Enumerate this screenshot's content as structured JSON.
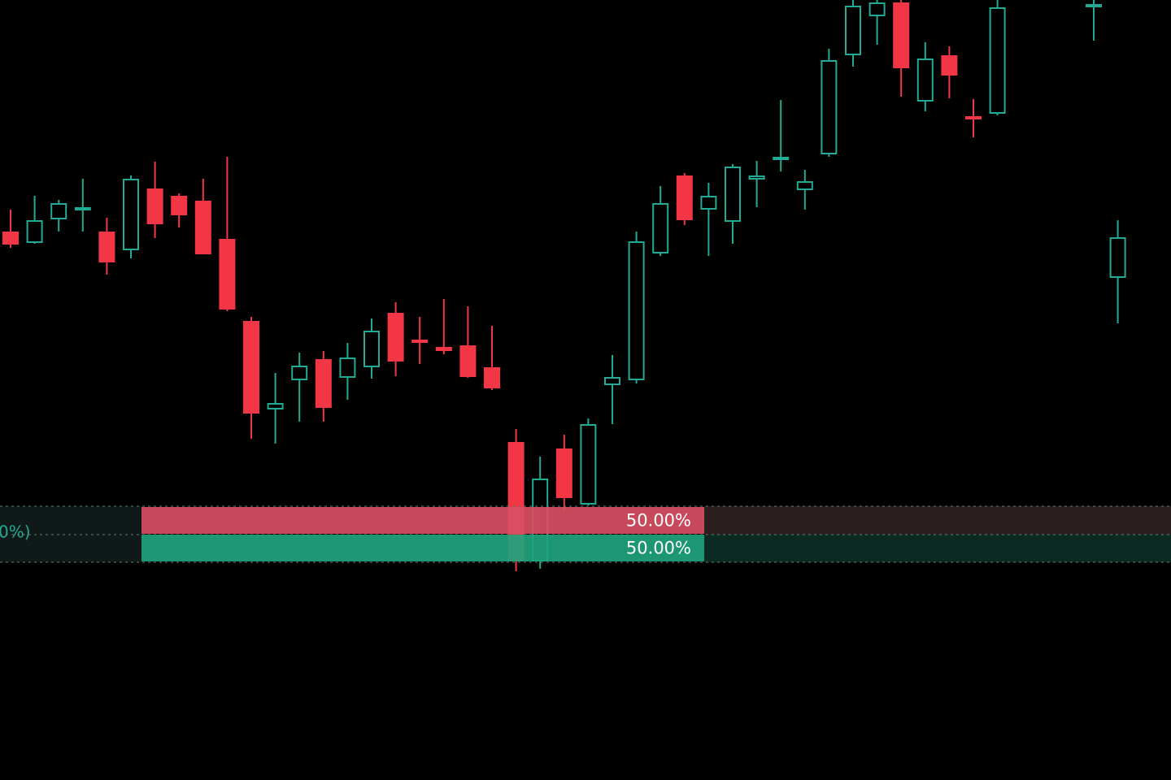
{
  "chart_data": {
    "type": "candlestick",
    "ylim": [
      0,
      96
    ],
    "up_color": "#22ab94",
    "down_color": "#f23645",
    "series": {
      "open": [
        67.4,
        66.2,
        69.1,
        70.2,
        67.4,
        65.3,
        72.7,
        71.8,
        71.2,
        66.5,
        56.4,
        45.7,
        49.3,
        51.7,
        49.6,
        50.9,
        57.4,
        54.1,
        53.2,
        53.4,
        50.7,
        41.5,
        27.0,
        40.7,
        34.0,
        48.7,
        49.3,
        64.9,
        74.3,
        70.3,
        68.8,
        74.0,
        76.4,
        72.7,
        77.1,
        89.3,
        94.1,
        95.6,
        83.6,
        89.1,
        81.6,
        82.1,
        null,
        null,
        null,
        95.2,
        61.9
      ],
      "high": [
        70.2,
        71.9,
        71.4,
        74.0,
        69.2,
        74.4,
        76.1,
        72.2,
        74.0,
        76.7,
        57.0,
        50.1,
        52.6,
        52.8,
        53.8,
        56.8,
        58.8,
        57.0,
        59.2,
        58.3,
        55.9,
        43.2,
        39.8,
        42.5,
        44.5,
        52.3,
        67.5,
        73.1,
        74.7,
        73.5,
        75.8,
        76.2,
        83.7,
        75.1,
        90.0,
        96.0,
        96.0,
        96.0,
        90.8,
        90.3,
        83.8,
        96.0,
        null,
        null,
        null,
        96.0,
        68.9
      ],
      "low": [
        65.5,
        66.0,
        67.5,
        67.5,
        62.2,
        64.2,
        66.7,
        68.0,
        64.8,
        57.7,
        42.0,
        41.4,
        44.1,
        44.1,
        46.8,
        49.4,
        49.7,
        51.2,
        52.4,
        49.5,
        48.0,
        25.7,
        26.0,
        33.2,
        33.8,
        43.8,
        48.8,
        64.5,
        68.3,
        64.5,
        66.0,
        70.5,
        74.9,
        70.2,
        76.7,
        87.8,
        90.5,
        84.1,
        82.3,
        83.9,
        79.1,
        81.8,
        null,
        null,
        null,
        91.0,
        56.2
      ],
      "close": [
        66.0,
        68.8,
        70.9,
        70.4,
        63.8,
        73.9,
        68.5,
        69.6,
        64.8,
        58.0,
        45.2,
        46.3,
        50.9,
        45.9,
        51.9,
        55.2,
        51.6,
        53.9,
        52.9,
        49.7,
        48.3,
        27.0,
        37.0,
        34.8,
        43.7,
        49.5,
        66.2,
        70.9,
        69.0,
        71.8,
        75.4,
        74.3,
        76.6,
        73.6,
        88.5,
        95.2,
        95.6,
        87.7,
        88.7,
        86.8,
        81.4,
        95.0,
        null,
        null,
        null,
        95.4,
        66.7
      ]
    },
    "overlay_label": "0%)",
    "bars": {
      "xlim": [
        0,
        100
      ],
      "values": [
        50,
        50
      ],
      "value_labels": [
        "50.00%",
        "50.00%"
      ],
      "colors": [
        "#d94f63",
        "#1fa37e"
      ]
    }
  }
}
